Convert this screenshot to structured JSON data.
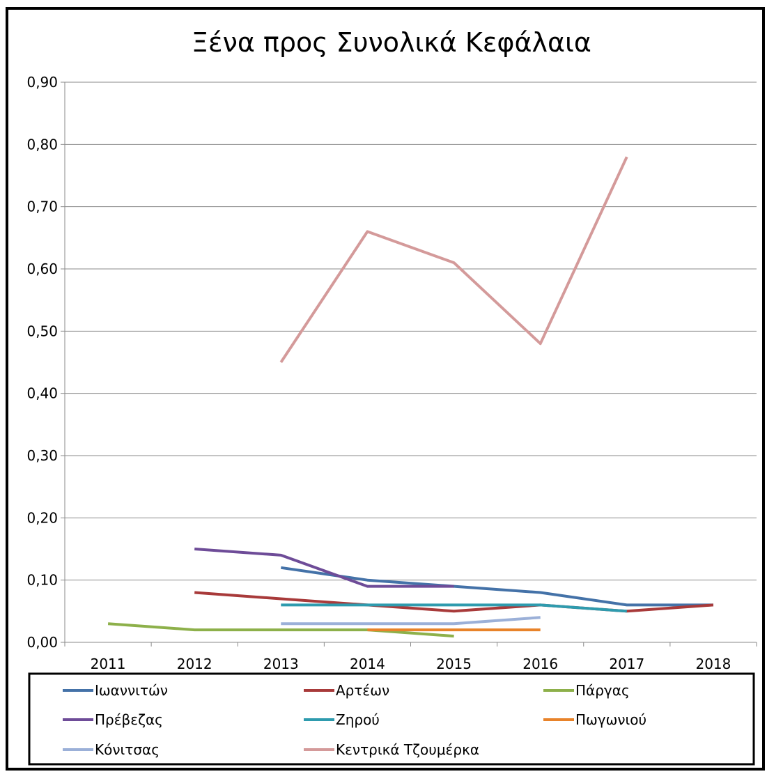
{
  "chart_data": {
    "type": "line",
    "title": "Ξένα προς Συνολικά Κεφάλαια",
    "xlabel": "",
    "ylabel": "",
    "categories": [
      "2011",
      "2012",
      "2013",
      "2014",
      "2015",
      "2016",
      "2017",
      "2018"
    ],
    "y_tick_labels": [
      "0,00",
      "0,10",
      "0,20",
      "0,30",
      "0,40",
      "0,50",
      "0,60",
      "0,70",
      "0,80",
      "0,90"
    ],
    "ylim": [
      0,
      0.9
    ],
    "grid": true,
    "legend_position": "bottom",
    "series": [
      {
        "name": "Ιωαννιτών",
        "color": "#4472A8",
        "values": [
          null,
          null,
          0.12,
          0.1,
          0.09,
          0.08,
          0.06,
          0.06
        ]
      },
      {
        "name": "Αρτέων",
        "color": "#A83A3A",
        "values": [
          null,
          0.08,
          0.07,
          0.06,
          0.05,
          0.06,
          0.05,
          0.06
        ]
      },
      {
        "name": "Πάργας",
        "color": "#8DB04A",
        "values": [
          0.03,
          0.02,
          0.02,
          0.02,
          0.01,
          null,
          null,
          null
        ]
      },
      {
        "name": "Πρέβεζας",
        "color": "#6E4C98",
        "values": [
          null,
          0.15,
          0.14,
          0.09,
          0.09,
          null,
          null,
          null
        ]
      },
      {
        "name": "Ζηρού",
        "color": "#2E9BAE",
        "values": [
          null,
          null,
          0.06,
          0.06,
          0.06,
          0.06,
          0.05,
          null
        ]
      },
      {
        "name": "Πωγωνιού",
        "color": "#E8832A",
        "values": [
          null,
          null,
          null,
          0.02,
          0.02,
          0.02,
          null,
          null
        ]
      },
      {
        "name": "Κόνιτσας",
        "color": "#9BB0D8",
        "values": [
          null,
          null,
          0.03,
          0.03,
          0.03,
          0.04,
          null,
          null
        ]
      },
      {
        "name": "Κεντρικά Τζουμέρκα",
        "color": "#D49A9A",
        "values": [
          null,
          null,
          0.45,
          0.66,
          0.61,
          0.48,
          0.78,
          null
        ]
      }
    ]
  }
}
